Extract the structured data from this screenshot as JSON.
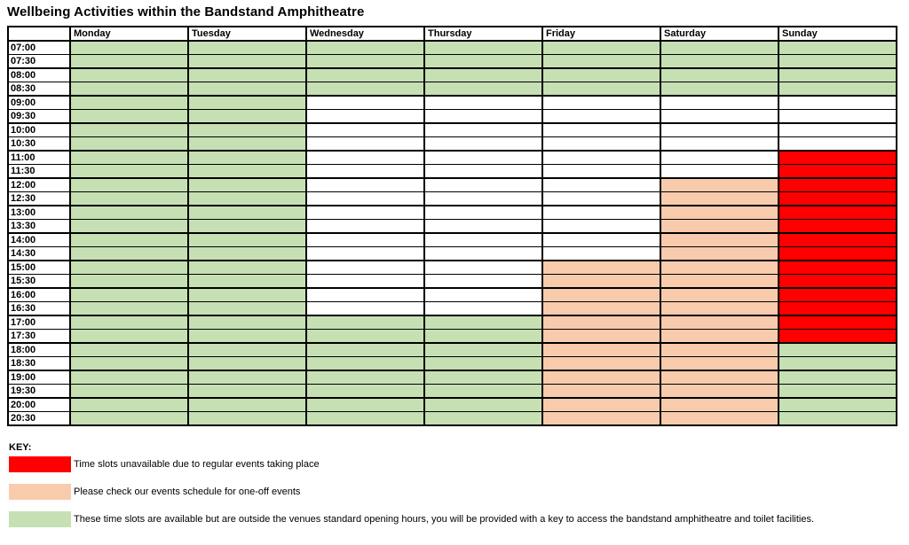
{
  "title": "Wellbeing Activities within the Bandstand Amphitheatre",
  "colors": {
    "G": "#c6e0b4",
    "P": "#f8cbad",
    "R": "#ff0000",
    "W": "#ffffff",
    "border": "#000000"
  },
  "code_meanings": {
    "R": "unavailable-regular-events",
    "P": "check-events-schedule-one-off",
    "G": "available-outside-standard-hours",
    "W": "blank"
  },
  "schedule": {
    "days": [
      "Monday",
      "Tuesday",
      "Wednesday",
      "Thursday",
      "Friday",
      "Saturday",
      "Sunday"
    ],
    "times": [
      "07:00",
      "07:30",
      "08:00",
      "08:30",
      "09:00",
      "09:30",
      "10:00",
      "10:30",
      "11:00",
      "11:30",
      "12:00",
      "12:30",
      "13:00",
      "13:30",
      "14:00",
      "14:30",
      "15:00",
      "15:30",
      "16:00",
      "16:30",
      "17:00",
      "17:30",
      "18:00",
      "18:30",
      "19:00",
      "19:30",
      "20:00",
      "20:30"
    ],
    "cells": {
      "Monday": "GGGGGGGGGGGGGGGGGGGGGGGGGGGG",
      "Tuesday": "GGGGGGGGGGGGGGGGGGGGGGGGGGGG",
      "Wednesday": "GGGGWWWWWWWWWWWWWWWWGGGGGGGG",
      "Thursday": "GGGGWWWWWWWWWWWWWWWWGGGGGGGG",
      "Friday": "GGGGWWWWWWWWWWWWPPPPPPPPPPPP",
      "Saturday": "GGGGWWWWWWPPPPPPPPPPPPPPPPPP",
      "Sunday": "GGGGWWWWRRRRRRRRRRRRRRGGGGGG"
    }
  },
  "key": {
    "label": "KEY:",
    "items": [
      {
        "code": "R",
        "text": "Time slots unavailable due to regular events taking place"
      },
      {
        "code": "P",
        "text": "Please check our events schedule for one-off events"
      },
      {
        "code": "G",
        "text": "These time slots are available but are outside the venues standard opening hours, you will be provided with a key to access the bandstand amphitheatre and toilet facilities."
      }
    ]
  }
}
